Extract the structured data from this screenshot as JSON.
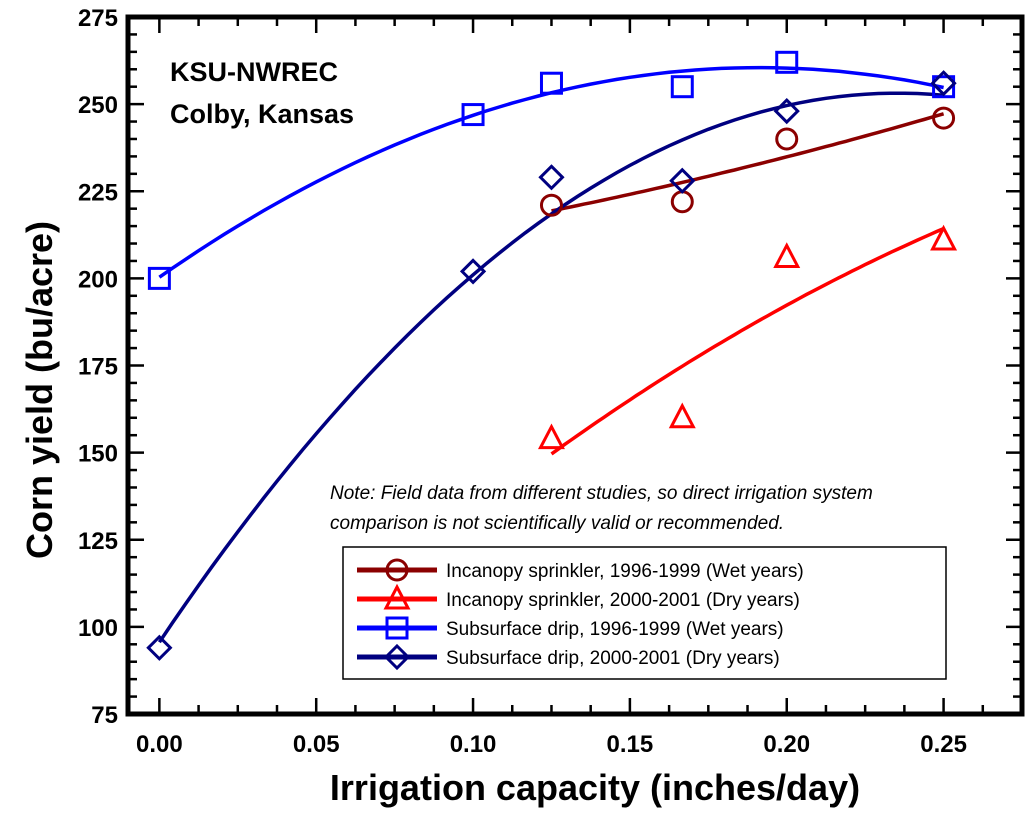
{
  "chart_data": {
    "type": "scatter",
    "title": "",
    "xlabel": "Irrigation capacity (inches/day)",
    "ylabel": "Corn yield (bu/acre)",
    "xlim": [
      -0.01,
      0.275
    ],
    "ylim": [
      75,
      275
    ],
    "x_ticks": [
      "0.00",
      "0.05",
      "0.10",
      "0.15",
      "0.20",
      "0.25"
    ],
    "x_tick_values": [
      0.0,
      0.05,
      0.1,
      0.15,
      0.2,
      0.25
    ],
    "y_ticks": [
      "75",
      "100",
      "125",
      "150",
      "175",
      "200",
      "225",
      "250",
      "275"
    ],
    "y_tick_values": [
      75,
      100,
      125,
      150,
      175,
      200,
      225,
      250,
      275
    ],
    "grid": false,
    "legend_position": "bottom-right",
    "annotations": {
      "station_line1": "KSU-NWREC",
      "station_line2": "Colby, Kansas",
      "note_line1": "Note: Field data from different studies, so direct irrigation system",
      "note_line2": "comparison is not scientifically valid or recommended."
    },
    "series": [
      {
        "name": "Incanopy sprinkler,  1996-1999 (Wet years)",
        "marker": "circle",
        "color": "#8b0000",
        "x": [
          0.125,
          0.1667,
          0.2,
          0.25
        ],
        "y": [
          221,
          222,
          240,
          246
        ],
        "fit_x": [
          0.125,
          0.25
        ],
        "fit_y": [
          219,
          246
        ]
      },
      {
        "name": "Incanopy sprinkler, 2000-2001 (Dry years)",
        "marker": "triangle",
        "color": "#ff0000",
        "x": [
          0.125,
          0.1667,
          0.2,
          0.25
        ],
        "y": [
          154,
          160,
          206,
          211
        ],
        "fit_x": [
          0.125,
          0.25
        ],
        "fit_y": [
          151,
          214
        ]
      },
      {
        "name": "Subsurface drip, 1996-1999 (Wet years)",
        "marker": "square",
        "color": "#0000ff",
        "x": [
          0.0,
          0.1,
          0.125,
          0.1667,
          0.2,
          0.25
        ],
        "y": [
          200,
          247,
          256,
          255,
          262,
          255
        ],
        "fit_x": [
          0.0,
          0.25
        ],
        "fit_y": [
          200,
          256
        ]
      },
      {
        "name": "Subsurface drip, 2000-2001 (Dry years)",
        "marker": "diamond",
        "color": "#000080",
        "x": [
          0.0,
          0.1,
          0.125,
          0.1667,
          0.2,
          0.25
        ],
        "y": [
          94,
          202,
          229,
          228,
          248,
          256
        ],
        "fit_x": [
          0.0,
          0.25
        ],
        "fit_y": [
          94,
          253
        ]
      }
    ]
  }
}
